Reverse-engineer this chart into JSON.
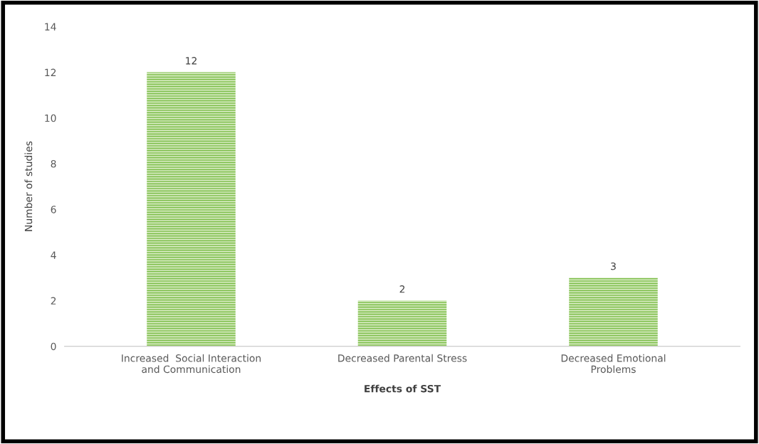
{
  "chart_data": {
    "type": "bar",
    "xlabel": "Effects of SST",
    "ylabel": "Number of studies",
    "categories": [
      "Increased  Social Interaction\nand Communication",
      "Decreased Parental Stress",
      "Decreased Emotional\nProblems"
    ],
    "values": [
      12,
      2,
      3
    ],
    "color": "#7fbf4d",
    "ylim": [
      0,
      14
    ],
    "yticks": [
      0,
      2,
      4,
      6,
      8,
      10,
      12,
      14
    ],
    "grid": false,
    "data_labels": true
  }
}
